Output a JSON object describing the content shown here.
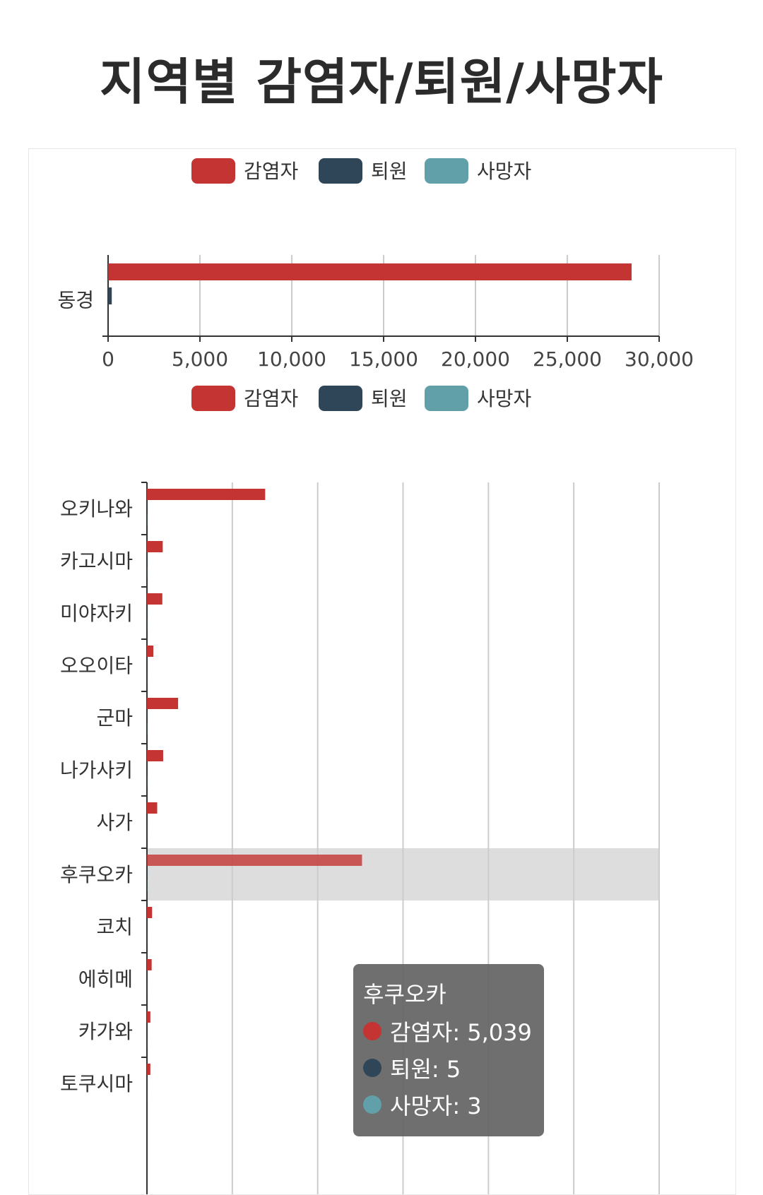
{
  "page": {
    "title": "지역별 감염자/퇴원/사망자"
  },
  "colors": {
    "infected": "#c33432",
    "discharged": "#2e4657",
    "deaths": "#61a0a8",
    "grid": "#cccccc",
    "axis": "#333333",
    "highlight": "#dddddd"
  },
  "chart_data": [
    {
      "type": "bar",
      "orientation": "horizontal",
      "legend": [
        "감염자",
        "퇴원",
        "사망자"
      ],
      "categories": [
        "동경"
      ],
      "series": [
        {
          "name": "감염자",
          "values": [
            28500
          ]
        },
        {
          "name": "퇴원",
          "values": [
            200
          ]
        },
        {
          "name": "사망자",
          "values": [
            0
          ]
        }
      ],
      "xlim": [
        0,
        30000
      ],
      "xticks": [
        "0",
        "5,000",
        "10,000",
        "15,000",
        "20,000",
        "25,000",
        "30,000"
      ]
    },
    {
      "type": "bar",
      "orientation": "horizontal",
      "legend": [
        "감염자",
        "퇴원",
        "사망자"
      ],
      "categories": [
        "오키나와",
        "카고시마",
        "미야자키",
        "오오이타",
        "군마",
        "나가사키",
        "사가",
        "후쿠오카",
        "코치",
        "에히메",
        "카가와",
        "토쿠시마"
      ],
      "series": [
        {
          "name": "감염자",
          "values": [
            2770,
            370,
            360,
            150,
            730,
            380,
            240,
            5039,
            120,
            110,
            80,
            80
          ]
        },
        {
          "name": "퇴원",
          "values": [
            5,
            5,
            5,
            3,
            5,
            4,
            4,
            5,
            3,
            3,
            2,
            2
          ]
        },
        {
          "name": "사망자",
          "values": [
            3,
            2,
            2,
            1,
            3,
            2,
            1,
            3,
            1,
            1,
            1,
            1
          ]
        }
      ],
      "xlim": [
        0,
        12000
      ],
      "highlighted_category": "후쿠오카"
    }
  ],
  "tooltip": {
    "title": "후쿠오카",
    "rows": [
      {
        "label": "감염자: 5,039",
        "color": "#c33432"
      },
      {
        "label": "퇴원: 5",
        "color": "#2e4657"
      },
      {
        "label": "사망자: 3",
        "color": "#61a0a8"
      }
    ]
  }
}
